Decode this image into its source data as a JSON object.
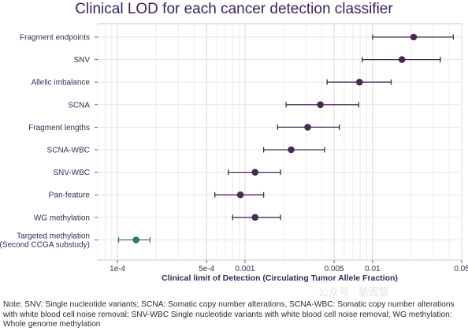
{
  "chart_data": {
    "type": "scatter",
    "title": "Clinical LOD for each cancer detection classifier",
    "xlabel": "Clinical limit of Detection (Circulating Tumor Allele Fraction)",
    "ylabel": "",
    "xscale": "log",
    "xlim": [
      7e-05,
      0.05
    ],
    "grid": true,
    "xticks": [
      {
        "value": 0.0001,
        "label": "1e-4"
      },
      {
        "value": 0.0005,
        "label": "5e-4"
      },
      {
        "value": 0.001,
        "label": "0.001"
      },
      {
        "value": 0.005,
        "label": "0.005"
      },
      {
        "value": 0.01,
        "label": "0.01"
      },
      {
        "value": 0.05,
        "label": "0.05"
      }
    ],
    "categories": [
      {
        "label": "Fragment endpoints",
        "lines": [
          "Fragment endpoints"
        ],
        "value": 0.021,
        "low": 0.01,
        "high": 0.043,
        "color": "#4a2a55"
      },
      {
        "label": "SNV",
        "lines": [
          "SNV"
        ],
        "value": 0.017,
        "low": 0.0083,
        "high": 0.034,
        "color": "#4a2a55"
      },
      {
        "label": "Allelic imbalance",
        "lines": [
          "Allelic imbalance"
        ],
        "value": 0.0079,
        "low": 0.0044,
        "high": 0.014,
        "color": "#4a2a55"
      },
      {
        "label": "SCNA",
        "lines": [
          "SCNA"
        ],
        "value": 0.0039,
        "low": 0.0021,
        "high": 0.0078,
        "color": "#4a2a55"
      },
      {
        "label": "Fragment lengths",
        "lines": [
          "Fragment lengths"
        ],
        "value": 0.0031,
        "low": 0.0018,
        "high": 0.0055,
        "color": "#4a2a55"
      },
      {
        "label": "SCNA-WBC",
        "lines": [
          "SCNA-WBC"
        ],
        "value": 0.0023,
        "low": 0.0014,
        "high": 0.0042,
        "color": "#4a2a55"
      },
      {
        "label": "SNV-WBC",
        "lines": [
          "SNV-WBC"
        ],
        "value": 0.0012,
        "low": 0.00074,
        "high": 0.0019,
        "color": "#4a2a55"
      },
      {
        "label": "Pan-feature",
        "lines": [
          "Pan-feature"
        ],
        "value": 0.00092,
        "low": 0.00058,
        "high": 0.0014,
        "color": "#4a2a55"
      },
      {
        "label": "WG methylation",
        "lines": [
          "WG methylation"
        ],
        "value": 0.0012,
        "low": 0.0008,
        "high": 0.0019,
        "color": "#4a2a55"
      },
      {
        "label": "Targeted methylation (Second CCGA substudy)",
        "lines": [
          "Targeted methylation",
          "(Second CCGA substudy)"
        ],
        "value": 0.00014,
        "low": 0.000102,
        "high": 0.00018,
        "color": "#2e7d64"
      }
    ]
  },
  "note": "Note: SNV: Single nucleotide variants; SCNA: Somatic copy number alterations, SCNA-WBC: Somatic copy number alterations with white blood cell noise removal; SNV-WBC Single nucleotide variants  with white blood cell noise removal; WG methylation: Whole genome methylation",
  "watermark": "公众号 · 基因慧"
}
